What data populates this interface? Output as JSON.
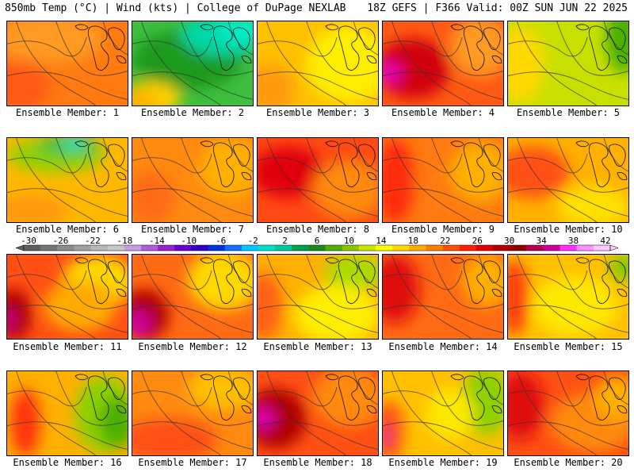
{
  "header": {
    "left": "850mb Temp (°C) | Wind (kts) | College of DuPage NEXLAB",
    "right": "18Z GEFS | F366 Valid: 00Z SUN JUN 22 2025"
  },
  "colorbar": {
    "labels": [
      "-30",
      "-26",
      "-22",
      "-18",
      "-14",
      "-10",
      "-6",
      "-2",
      "2",
      "6",
      "10",
      "14",
      "18",
      "22",
      "26",
      "30",
      "34",
      "38",
      "42"
    ],
    "colors": [
      "#5f5f5f",
      "#767676",
      "#8c8c8c",
      "#a2a2a2",
      "#b8b8b8",
      "#c8c8c8",
      "#c99be5",
      "#b05bd9",
      "#9b1fcd",
      "#6a00c8",
      "#3300c8",
      "#0033dd",
      "#1670ff",
      "#00c8ff",
      "#00e2c8",
      "#00c8a0",
      "#00a050",
      "#1a8a1a",
      "#4bb000",
      "#88c800",
      "#c8e600",
      "#ffff00",
      "#ffd800",
      "#ffaa00",
      "#ff8000",
      "#ff5000",
      "#ff2000",
      "#e00000",
      "#b00000",
      "#900000",
      "#b00050",
      "#d000a0",
      "#ff30ff",
      "#ff90ff",
      "#ffc8ff"
    ]
  },
  "panels": [
    {
      "label": "Ensemble Member: 1",
      "base": "#ff7a10",
      "blobs": [
        [
          "#ff9a20",
          0.35,
          0.2,
          0.45,
          0.3
        ],
        [
          "#ff5a18",
          0.1,
          0.75,
          0.25,
          0.3
        ]
      ]
    },
    {
      "label": "Ensemble Member: 2",
      "base": "#3fbf3f",
      "blobs": [
        [
          "#1d9a1d",
          0.45,
          0.45,
          0.45,
          0.35
        ],
        [
          "#00d8a8",
          0.75,
          0.15,
          0.35,
          0.25
        ],
        [
          "#00eec8",
          0.9,
          0.1,
          0.2,
          0.15
        ],
        [
          "#ffd000",
          0.15,
          0.9,
          0.25,
          0.2
        ],
        [
          "#ffb000",
          0.05,
          0.95,
          0.15,
          0.15
        ]
      ]
    },
    {
      "label": "Ensemble Member: 3",
      "base": "#ffc000",
      "blobs": [
        [
          "#ffee00",
          0.75,
          0.5,
          0.35,
          0.45
        ],
        [
          "#ff9a10",
          0.1,
          0.8,
          0.2,
          0.3
        ]
      ]
    },
    {
      "label": "Ensemble Member: 4",
      "base": "#ff5a14",
      "blobs": [
        [
          "#d00010",
          0.25,
          0.55,
          0.3,
          0.35
        ],
        [
          "#e800c0",
          0.05,
          0.6,
          0.1,
          0.12
        ],
        [
          "#ff9a20",
          0.8,
          0.3,
          0.25,
          0.35
        ]
      ]
    },
    {
      "label": "Ensemble Member: 5",
      "base": "#c8e000",
      "blobs": [
        [
          "#ffd800",
          0.1,
          0.5,
          0.2,
          0.45
        ],
        [
          "#4bb000",
          0.95,
          0.2,
          0.15,
          0.4
        ]
      ]
    },
    {
      "label": "Ensemble Member: 6",
      "base": "#ffb800",
      "blobs": [
        [
          "#8ed000",
          0.4,
          0.2,
          0.4,
          0.2
        ],
        [
          "#3fbf3f",
          0.5,
          0.08,
          0.25,
          0.12
        ],
        [
          "#00e6d0",
          0.55,
          0.05,
          0.1,
          0.07
        ],
        [
          "#ff9a10",
          0.2,
          0.85,
          0.3,
          0.2
        ]
      ]
    },
    {
      "label": "Ensemble Member: 7",
      "base": "#ff8a10",
      "blobs": [
        [
          "#ffb000",
          0.8,
          0.35,
          0.25,
          0.35
        ],
        [
          "#ff6a14",
          0.15,
          0.7,
          0.2,
          0.3
        ]
      ]
    },
    {
      "label": "Ensemble Member: 8",
      "base": "#ff4a14",
      "blobs": [
        [
          "#e00010",
          0.25,
          0.4,
          0.3,
          0.3
        ],
        [
          "#ff8a10",
          0.75,
          0.6,
          0.3,
          0.35
        ]
      ]
    },
    {
      "label": "Ensemble Member: 9",
      "base": "#ff7a10",
      "blobs": [
        [
          "#ff2a10",
          0.1,
          0.5,
          0.15,
          0.5
        ],
        [
          "#ffb000",
          0.8,
          0.4,
          0.25,
          0.35
        ]
      ]
    },
    {
      "label": "Ensemble Member: 10",
      "base": "#ffb000",
      "blobs": [
        [
          "#ff5014",
          0.2,
          0.4,
          0.3,
          0.3
        ],
        [
          "#ffe000",
          0.7,
          0.8,
          0.3,
          0.25
        ]
      ]
    },
    {
      "label": "Ensemble Member: 11",
      "base": "#ff5014",
      "blobs": [
        [
          "#b00000",
          0.05,
          0.7,
          0.15,
          0.3
        ],
        [
          "#d000a0",
          0.0,
          0.75,
          0.05,
          0.1
        ],
        [
          "#ffd800",
          0.75,
          0.3,
          0.3,
          0.3
        ],
        [
          "#ffaa00",
          0.6,
          0.6,
          0.3,
          0.3
        ]
      ]
    },
    {
      "label": "Ensemble Member: 12",
      "base": "#ff6a14",
      "blobs": [
        [
          "#b00000",
          0.1,
          0.7,
          0.2,
          0.3
        ],
        [
          "#d000a0",
          0.05,
          0.8,
          0.1,
          0.15
        ],
        [
          "#ffd800",
          0.75,
          0.3,
          0.3,
          0.35
        ]
      ]
    },
    {
      "label": "Ensemble Member: 13",
      "base": "#ffb000",
      "blobs": [
        [
          "#ff6014",
          0.05,
          0.6,
          0.15,
          0.4
        ],
        [
          "#a8dc00",
          0.8,
          0.2,
          0.25,
          0.2
        ],
        [
          "#ffee00",
          0.65,
          0.7,
          0.35,
          0.35
        ]
      ]
    },
    {
      "label": "Ensemble Member: 14",
      "base": "#ff6a14",
      "blobs": [
        [
          "#e01010",
          0.1,
          0.4,
          0.2,
          0.4
        ],
        [
          "#ffb000",
          0.85,
          0.3,
          0.2,
          0.3
        ]
      ]
    },
    {
      "label": "Ensemble Member: 15",
      "base": "#ffc000",
      "blobs": [
        [
          "#ff4010",
          0.05,
          0.5,
          0.12,
          0.45
        ],
        [
          "#ffe800",
          0.55,
          0.6,
          0.35,
          0.35
        ],
        [
          "#7bc800",
          0.95,
          0.15,
          0.12,
          0.15
        ]
      ]
    },
    {
      "label": "Ensemble Member: 16",
      "base": "#ffb000",
      "blobs": [
        [
          "#ff3010",
          0.15,
          0.6,
          0.12,
          0.4
        ],
        [
          "#8ed000",
          0.8,
          0.5,
          0.25,
          0.45
        ],
        [
          "#4bb000",
          0.9,
          0.6,
          0.15,
          0.3
        ]
      ]
    },
    {
      "label": "Ensemble Member: 17",
      "base": "#ff8a10",
      "blobs": [
        [
          "#ff5014",
          0.3,
          0.8,
          0.4,
          0.25
        ],
        [
          "#ffc000",
          0.75,
          0.2,
          0.3,
          0.25
        ]
      ]
    },
    {
      "label": "Ensemble Member: 18",
      "base": "#ff5014",
      "blobs": [
        [
          "#b00000",
          0.15,
          0.55,
          0.25,
          0.35
        ],
        [
          "#e800c0",
          0.05,
          0.55,
          0.08,
          0.12
        ],
        [
          "#ff8a10",
          0.75,
          0.3,
          0.3,
          0.35
        ]
      ]
    },
    {
      "label": "Ensemble Member: 19",
      "base": "#ffc000",
      "blobs": [
        [
          "#ff5014",
          0.05,
          0.7,
          0.12,
          0.35
        ],
        [
          "#d000a0",
          0.02,
          0.75,
          0.04,
          0.1
        ],
        [
          "#8ed000",
          0.85,
          0.35,
          0.2,
          0.4
        ],
        [
          "#ffe800",
          0.55,
          0.5,
          0.2,
          0.3
        ]
      ]
    },
    {
      "label": "Ensemble Member: 20",
      "base": "#ff5014",
      "blobs": [
        [
          "#e01010",
          0.1,
          0.4,
          0.2,
          0.4
        ],
        [
          "#ff8a10",
          0.7,
          0.6,
          0.35,
          0.35
        ],
        [
          "#ffb000",
          0.9,
          0.3,
          0.2,
          0.25
        ]
      ]
    }
  ]
}
